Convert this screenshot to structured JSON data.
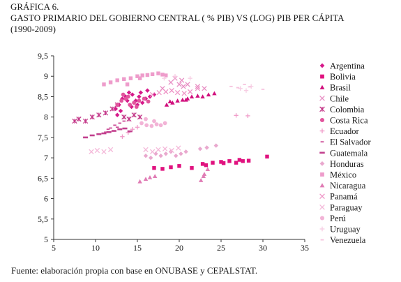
{
  "figure": {
    "label": "GRÁFICA 6.",
    "title": "GASTO PRIMARIO DEL GOBIERNO CENTRAL ( % PIB) VS (LOG) PIB PER CÁPITA",
    "subtitle": "(1990-2009)",
    "source": "Fuente: elaboración propia con base en ONUBASE y CEPALSTAT."
  },
  "chart_data": {
    "type": "scatter",
    "title": "GASTO PRIMARIO DEL GOBIERNO CENTRAL ( % PIB) VS (LOG) PIB PER CÁPITA",
    "subtitle": "(1990-2009)",
    "xlabel": "",
    "ylabel": "",
    "xlim": [
      5,
      35
    ],
    "ylim": [
      5,
      9.5
    ],
    "xticks": [
      5,
      10,
      15,
      20,
      25,
      30,
      35
    ],
    "yticks": [
      5,
      5.5,
      6,
      6.5,
      7,
      7.5,
      8,
      8.5,
      9,
      9.5
    ],
    "ytick_labels": [
      "5",
      "5,5",
      "6",
      "6,5",
      "7",
      "7,5",
      "8",
      "8,5",
      "9",
      "9,5"
    ],
    "grid": false,
    "legend_position": "right",
    "series": [
      {
        "name": "Argentina",
        "marker": "diamond",
        "color": "#d6198a",
        "points": [
          [
            13.2,
            8.45
          ],
          [
            13.6,
            8.5
          ],
          [
            14,
            8.6
          ],
          [
            14.4,
            8.55
          ],
          [
            12.8,
            8.3
          ],
          [
            13,
            8.15
          ],
          [
            14.8,
            8.4
          ],
          [
            15.2,
            8.5
          ],
          [
            16,
            8.45
          ],
          [
            16.5,
            8.5
          ],
          [
            17,
            8.55
          ],
          [
            15.6,
            8.35
          ],
          [
            12.6,
            8.05
          ],
          [
            14.3,
            8.25
          ],
          [
            13.8,
            8.4
          ],
          [
            15.4,
            8.6
          ],
          [
            16.2,
            8.65
          ],
          [
            12.4,
            8.2
          ],
          [
            15,
            8.3
          ]
        ]
      },
      {
        "name": "Bolivia",
        "marker": "square",
        "color": "#e0127f",
        "points": [
          [
            17,
            6.75
          ],
          [
            18,
            6.73
          ],
          [
            19,
            6.77
          ],
          [
            20,
            6.8
          ],
          [
            21.5,
            6.75
          ],
          [
            22.8,
            6.85
          ],
          [
            24,
            6.88
          ],
          [
            25,
            6.9
          ],
          [
            26,
            6.92
          ],
          [
            26.8,
            6.88
          ],
          [
            27.2,
            6.95
          ],
          [
            27.6,
            6.92
          ],
          [
            28.3,
            6.93
          ],
          [
            30.5,
            7.03
          ],
          [
            23.2,
            6.82
          ],
          [
            25.3,
            6.87
          ]
        ]
      },
      {
        "name": "Brasil",
        "marker": "triangle",
        "color": "#d10f7d",
        "points": [
          [
            18.5,
            8.3
          ],
          [
            19.2,
            8.35
          ],
          [
            19.8,
            8.4
          ],
          [
            20.4,
            8.42
          ],
          [
            21,
            8.45
          ],
          [
            21.5,
            8.5
          ],
          [
            22.2,
            8.52
          ],
          [
            23.5,
            8.55
          ],
          [
            24.2,
            8.58
          ],
          [
            18.9,
            8.38
          ],
          [
            20.8,
            8.42
          ],
          [
            22.8,
            8.5
          ]
        ]
      },
      {
        "name": "Chile",
        "marker": "x",
        "color": "#e88fc4",
        "points": [
          [
            18,
            8.7
          ],
          [
            19,
            8.85
          ],
          [
            19.5,
            8.95
          ],
          [
            20,
            8.8
          ],
          [
            20.5,
            8.75
          ],
          [
            21,
            8.8
          ],
          [
            22.2,
            8.75
          ],
          [
            23,
            8.7
          ],
          [
            20.3,
            8.9
          ]
        ]
      },
      {
        "name": "Colombia",
        "marker": "asterisk",
        "color": "#c43a8a",
        "points": [
          [
            7.5,
            7.9
          ],
          [
            8,
            7.95
          ],
          [
            8.8,
            7.9
          ],
          [
            9.6,
            8.0
          ],
          [
            10.4,
            8.05
          ],
          [
            11.2,
            8.1
          ],
          [
            12,
            8.2
          ],
          [
            12.6,
            8.3
          ],
          [
            13.4,
            8.0
          ],
          [
            14,
            7.95
          ],
          [
            14.6,
            8.05
          ],
          [
            15.3,
            8.0
          ]
        ]
      },
      {
        "name": "Costa Rica",
        "marker": "circle",
        "color": "#e2559d",
        "points": [
          [
            12.6,
            8.3
          ],
          [
            13.1,
            8.4
          ],
          [
            13.6,
            8.45
          ],
          [
            14.1,
            8.3
          ],
          [
            14.6,
            8.35
          ],
          [
            15.2,
            8.4
          ],
          [
            15.8,
            8.45
          ],
          [
            16.3,
            8.38
          ],
          [
            13.3,
            8.55
          ],
          [
            13.9,
            8.5
          ],
          [
            14.9,
            8.25
          ]
        ]
      },
      {
        "name": "Ecuador",
        "marker": "plus",
        "color": "#f09ac8",
        "points": [
          [
            26.8,
            8.04
          ],
          [
            28.2,
            8.03
          ],
          [
            13.2,
            7.52
          ],
          [
            13.9,
            7.62
          ],
          [
            14.4,
            7.7
          ],
          [
            15,
            7.75
          ]
        ]
      },
      {
        "name": "El Salvador",
        "marker": "dash",
        "color": "#cc4d97",
        "points": [
          [
            11.2,
            7.63
          ],
          [
            11.8,
            7.73
          ],
          [
            12.3,
            7.8
          ],
          [
            12.9,
            7.85
          ],
          [
            13.4,
            7.9
          ],
          [
            11.5,
            7.7
          ],
          [
            12.6,
            7.75
          ]
        ]
      },
      {
        "name": "Guatemala",
        "marker": "bar",
        "color": "#c2408e",
        "points": [
          [
            8.8,
            7.5
          ],
          [
            9.6,
            7.55
          ],
          [
            10.4,
            7.58
          ],
          [
            11,
            7.6
          ],
          [
            11.6,
            7.63
          ],
          [
            12.2,
            7.66
          ],
          [
            12.9,
            7.7
          ],
          [
            13.5,
            7.72
          ],
          [
            14.1,
            7.65
          ]
        ]
      },
      {
        "name": "Honduras",
        "marker": "diamond",
        "color": "#e9a8ce",
        "points": [
          [
            16,
            7.05
          ],
          [
            16.6,
            7.0
          ],
          [
            17.2,
            7.1
          ],
          [
            17.8,
            7.05
          ],
          [
            18.4,
            7.1
          ],
          [
            19,
            7.15
          ],
          [
            19.6,
            7.05
          ],
          [
            20.2,
            7.1
          ],
          [
            20.8,
            7.15
          ],
          [
            22.5,
            7.22
          ],
          [
            23.3,
            7.25
          ],
          [
            24.4,
            7.3
          ]
        ]
      },
      {
        "name": "México",
        "marker": "square",
        "color": "#ee9ccb",
        "points": [
          [
            11,
            8.8
          ],
          [
            11.8,
            8.85
          ],
          [
            12.6,
            8.9
          ],
          [
            13.4,
            8.93
          ],
          [
            14.2,
            8.95
          ],
          [
            15,
            9.0
          ],
          [
            15.6,
            9.02
          ],
          [
            16.2,
            9.03
          ],
          [
            16.8,
            9.05
          ],
          [
            17.5,
            9.07
          ],
          [
            18,
            9.04
          ],
          [
            18.4,
            9.02
          ],
          [
            13.8,
            8.8
          ],
          [
            15.3,
            8.95
          ]
        ]
      },
      {
        "name": "Nicaragua",
        "marker": "triangle",
        "color": "#e07cb5",
        "points": [
          [
            15.3,
            6.42
          ],
          [
            16,
            6.48
          ],
          [
            16.5,
            6.52
          ],
          [
            17.1,
            6.55
          ],
          [
            22.6,
            6.45
          ],
          [
            23,
            6.6
          ],
          [
            23.4,
            6.72
          ],
          [
            22.9,
            6.55
          ]
        ]
      },
      {
        "name": "Panamá",
        "marker": "x",
        "color": "#ee93c6",
        "points": [
          [
            16.8,
            8.55
          ],
          [
            17.6,
            8.6
          ],
          [
            18.4,
            8.62
          ],
          [
            19.1,
            8.65
          ],
          [
            19.8,
            8.6
          ],
          [
            20.6,
            8.58
          ],
          [
            21.3,
            8.62
          ],
          [
            22.2,
            8.7
          ]
        ]
      },
      {
        "name": "Paraguay",
        "marker": "x",
        "color": "#f4b8d9",
        "points": [
          [
            9.5,
            7.15
          ],
          [
            10.2,
            7.18
          ],
          [
            11,
            7.15
          ],
          [
            11.8,
            7.2
          ],
          [
            16,
            7.2
          ],
          [
            16.8,
            7.15
          ],
          [
            17.5,
            7.2
          ],
          [
            18.3,
            7.22
          ],
          [
            19.1,
            7.18
          ],
          [
            19.9,
            7.24
          ]
        ]
      },
      {
        "name": "Perú",
        "marker": "circle",
        "color": "#f2b3d6",
        "points": [
          [
            15.5,
            7.85
          ],
          [
            16.1,
            7.8
          ],
          [
            16.7,
            7.78
          ],
          [
            17.3,
            7.82
          ],
          [
            17.8,
            7.8
          ],
          [
            18.3,
            7.85
          ],
          [
            16,
            7.95
          ],
          [
            17,
            7.9
          ]
        ]
      },
      {
        "name": "Uruguay",
        "marker": "plus",
        "color": "#f7cde3",
        "points": [
          [
            18.2,
            8.95
          ],
          [
            19.5,
            9.0
          ],
          [
            21.3,
            8.95
          ],
          [
            27.3,
            8.7
          ],
          [
            28,
            8.65
          ],
          [
            28.6,
            8.75
          ]
        ]
      },
      {
        "name": "Venezuela",
        "marker": "dash",
        "color": "#f6c3de",
        "points": [
          [
            26.2,
            8.75
          ],
          [
            27,
            8.72
          ],
          [
            27.8,
            8.8
          ],
          [
            28.4,
            8.74
          ],
          [
            30,
            8.68
          ]
        ]
      }
    ]
  }
}
